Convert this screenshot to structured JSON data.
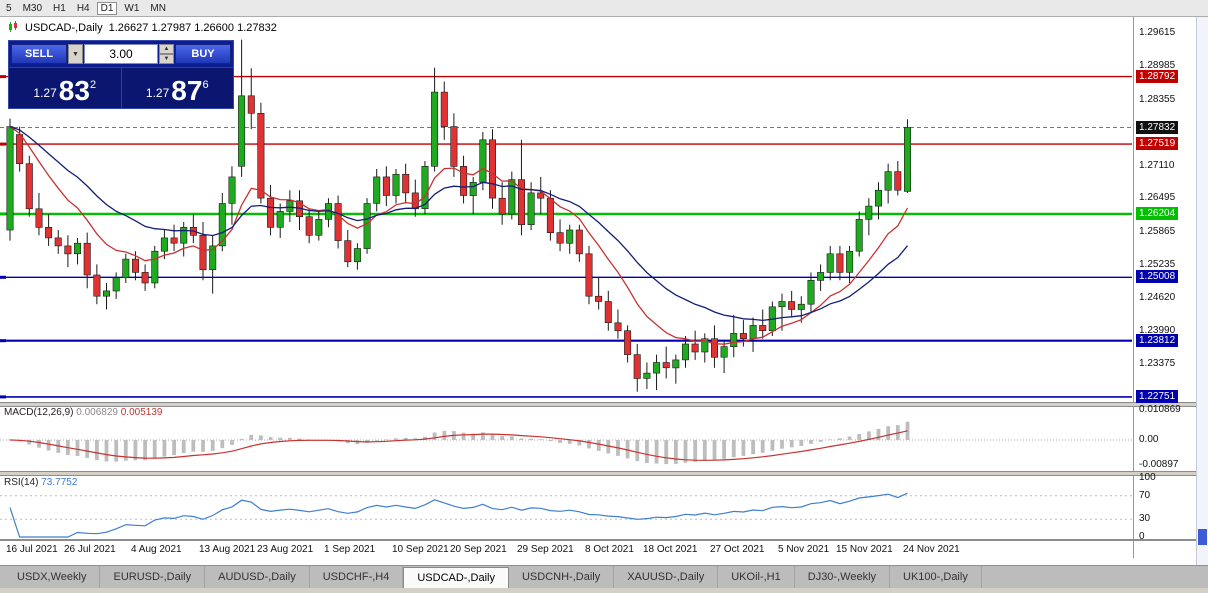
{
  "toolbar": {
    "items": [
      "5",
      "M30",
      "H1",
      "H4",
      "D1",
      "W1",
      "MN"
    ],
    "active": "D1"
  },
  "chart_header": {
    "symbol": "USDCAD-,Daily",
    "ohlc": "1.26627 1.27987 1.26600 1.27832"
  },
  "trade_panel": {
    "sell_label": "SELL",
    "buy_label": "BUY",
    "volume": "3.00",
    "sell_price": {
      "small": "1.27",
      "big": "83",
      "sup": "2"
    },
    "buy_price": {
      "small": "1.27",
      "big": "87",
      "sup": "6"
    }
  },
  "chart_data": {
    "type": "candlestick",
    "title": "USDCAD-,Daily",
    "ohlc_display": {
      "open": "1.26627",
      "high": "1.27987",
      "low": "1.26600",
      "close": "1.27832"
    },
    "visible_price_range": [
      1.22638,
      1.29898
    ],
    "up_color": "#1faa1f",
    "down_color": "#e03232",
    "wick_color": "#1a1a1a",
    "price_axis_ticks": [
      "1.29615",
      "1.28985",
      "1.28355",
      "1.27110",
      "1.26495",
      "1.25865",
      "1.25235",
      "1.24620",
      "1.23990",
      "1.23375"
    ],
    "price_levels": [
      {
        "price": 1.28792,
        "label": "1.28792",
        "color": "#c00000",
        "width": 1.4
      },
      {
        "price": 1.27519,
        "label": "1.27519",
        "color": "#c00000",
        "width": 1.4
      },
      {
        "price": 1.26204,
        "label": "1.26204",
        "color": "#00c000",
        "width": 2.4
      },
      {
        "price": 1.25008,
        "label": "1.25008",
        "color": "#0000b0",
        "width": 1.4
      },
      {
        "price": 1.23812,
        "label": "1.23812",
        "color": "#0000b0",
        "width": 2.2
      },
      {
        "price": 1.22751,
        "label": "1.22751",
        "color": "#0000b0",
        "width": 1.6
      }
    ],
    "current_price": {
      "value": 1.27832,
      "label": "1.27832",
      "badge_bg": "#111111"
    },
    "moving_averages": [
      {
        "period": 10,
        "color": "#c83232",
        "name": "fast-ma-line"
      },
      {
        "period": 21,
        "color": "#141e78",
        "name": "slow-ma-line"
      }
    ],
    "candles": [
      [
        1.259,
        1.28,
        1.257,
        1.2785
      ],
      [
        1.277,
        1.2785,
        1.27,
        1.2715
      ],
      [
        1.2715,
        1.273,
        1.2615,
        1.263
      ],
      [
        1.263,
        1.266,
        1.258,
        1.2595
      ],
      [
        1.2595,
        1.262,
        1.256,
        1.2575
      ],
      [
        1.2575,
        1.259,
        1.2545,
        1.256
      ],
      [
        1.256,
        1.258,
        1.252,
        1.2545
      ],
      [
        1.2545,
        1.2575,
        1.2525,
        1.2565
      ],
      [
        1.2565,
        1.2585,
        1.248,
        1.2505
      ],
      [
        1.2505,
        1.2525,
        1.245,
        1.2465
      ],
      [
        1.2465,
        1.249,
        1.244,
        1.2475
      ],
      [
        1.2475,
        1.251,
        1.246,
        1.25
      ],
      [
        1.25,
        1.2545,
        1.249,
        1.2535
      ],
      [
        1.2535,
        1.255,
        1.2495,
        1.251
      ],
      [
        1.251,
        1.2525,
        1.2475,
        1.249
      ],
      [
        1.249,
        1.256,
        1.248,
        1.255
      ],
      [
        1.255,
        1.259,
        1.2535,
        1.2575
      ],
      [
        1.2575,
        1.26,
        1.255,
        1.2565
      ],
      [
        1.2565,
        1.2605,
        1.254,
        1.2595
      ],
      [
        1.2595,
        1.262,
        1.2565,
        1.258
      ],
      [
        1.258,
        1.2605,
        1.2495,
        1.2515
      ],
      [
        1.2515,
        1.258,
        1.247,
        1.256
      ],
      [
        1.256,
        1.266,
        1.255,
        1.264
      ],
      [
        1.264,
        1.271,
        1.26,
        1.269
      ],
      [
        1.271,
        1.2949,
        1.269,
        1.2843
      ],
      [
        1.2843,
        1.2895,
        1.278,
        1.281
      ],
      [
        1.281,
        1.283,
        1.264,
        1.265
      ],
      [
        1.265,
        1.2675,
        1.258,
        1.2595
      ],
      [
        1.2595,
        1.264,
        1.2575,
        1.2625
      ],
      [
        1.2625,
        1.2665,
        1.2605,
        1.2645
      ],
      [
        1.2645,
        1.2665,
        1.259,
        1.2615
      ],
      [
        1.2615,
        1.263,
        1.2565,
        1.258
      ],
      [
        1.258,
        1.2625,
        1.257,
        1.261
      ],
      [
        1.261,
        1.265,
        1.2595,
        1.264
      ],
      [
        1.264,
        1.2655,
        1.2555,
        1.257
      ],
      [
        1.257,
        1.259,
        1.252,
        1.253
      ],
      [
        1.253,
        1.2565,
        1.2515,
        1.2555
      ],
      [
        1.2555,
        1.265,
        1.2545,
        1.264
      ],
      [
        1.264,
        1.2705,
        1.2625,
        1.269
      ],
      [
        1.269,
        1.271,
        1.2635,
        1.2655
      ],
      [
        1.2655,
        1.2705,
        1.264,
        1.2695
      ],
      [
        1.2695,
        1.2715,
        1.264,
        1.266
      ],
      [
        1.266,
        1.2685,
        1.2615,
        1.263
      ],
      [
        1.263,
        1.272,
        1.262,
        1.271
      ],
      [
        1.271,
        1.2896,
        1.27,
        1.285
      ],
      [
        1.285,
        1.287,
        1.276,
        1.2785
      ],
      [
        1.2785,
        1.281,
        1.269,
        1.271
      ],
      [
        1.271,
        1.273,
        1.264,
        1.2655
      ],
      [
        1.2655,
        1.269,
        1.262,
        1.268
      ],
      [
        1.268,
        1.2775,
        1.2665,
        1.276
      ],
      [
        1.276,
        1.278,
        1.263,
        1.265
      ],
      [
        1.265,
        1.268,
        1.26,
        1.262
      ],
      [
        1.262,
        1.27,
        1.261,
        1.2685
      ],
      [
        1.2685,
        1.276,
        1.258,
        1.26
      ],
      [
        1.26,
        1.268,
        1.259,
        1.266
      ],
      [
        1.266,
        1.269,
        1.262,
        1.265
      ],
      [
        1.265,
        1.2665,
        1.257,
        1.2585
      ],
      [
        1.2585,
        1.261,
        1.255,
        1.2565
      ],
      [
        1.2565,
        1.26,
        1.2545,
        1.259
      ],
      [
        1.259,
        1.26,
        1.253,
        1.2545
      ],
      [
        1.2545,
        1.256,
        1.245,
        1.2465
      ],
      [
        1.2465,
        1.25,
        1.244,
        1.2455
      ],
      [
        1.2455,
        1.2475,
        1.24,
        1.2415
      ],
      [
        1.2415,
        1.244,
        1.2385,
        1.24
      ],
      [
        1.24,
        1.241,
        1.234,
        1.2355
      ],
      [
        1.2355,
        1.2375,
        1.2285,
        1.231
      ],
      [
        1.231,
        1.234,
        1.229,
        1.232
      ],
      [
        1.232,
        1.2355,
        1.2288,
        1.234
      ],
      [
        1.234,
        1.237,
        1.231,
        1.233
      ],
      [
        1.233,
        1.2355,
        1.23,
        1.2345
      ],
      [
        1.2345,
        1.239,
        1.233,
        1.2375
      ],
      [
        1.2375,
        1.24,
        1.2345,
        1.236
      ],
      [
        1.236,
        1.2395,
        1.234,
        1.2385
      ],
      [
        1.2385,
        1.241,
        1.233,
        1.235
      ],
      [
        1.235,
        1.238,
        1.232,
        1.237
      ],
      [
        1.237,
        1.243,
        1.235,
        1.2395
      ],
      [
        1.2395,
        1.242,
        1.237,
        1.2385
      ],
      [
        1.2385,
        1.2425,
        1.236,
        1.241
      ],
      [
        1.241,
        1.244,
        1.2385,
        1.24
      ],
      [
        1.24,
        1.2455,
        1.239,
        1.2445
      ],
      [
        1.2445,
        1.247,
        1.24,
        1.2455
      ],
      [
        1.2455,
        1.2475,
        1.2425,
        1.244
      ],
      [
        1.244,
        1.2465,
        1.2415,
        1.245
      ],
      [
        1.245,
        1.251,
        1.2435,
        1.2495
      ],
      [
        1.2495,
        1.2525,
        1.2475,
        1.251
      ],
      [
        1.251,
        1.256,
        1.2495,
        1.2545
      ],
      [
        1.2545,
        1.256,
        1.2495,
        1.251
      ],
      [
        1.251,
        1.256,
        1.249,
        1.255
      ],
      [
        1.255,
        1.2625,
        1.254,
        1.261
      ],
      [
        1.261,
        1.265,
        1.258,
        1.2635
      ],
      [
        1.2635,
        1.268,
        1.261,
        1.2665
      ],
      [
        1.2665,
        1.2715,
        1.264,
        1.27
      ],
      [
        1.27,
        1.272,
        1.2655,
        1.2665
      ],
      [
        1.26627,
        1.27987,
        1.266,
        1.27832
      ]
    ],
    "date_ticks": [
      {
        "i": 0,
        "label": "16 Jul 2021"
      },
      {
        "i": 6,
        "label": "26 Jul 2021"
      },
      {
        "i": 13,
        "label": "4 Aug 2021"
      },
      {
        "i": 20,
        "label": "13 Aug 2021"
      },
      {
        "i": 26,
        "label": "23 Aug 2021"
      },
      {
        "i": 33,
        "label": "1 Sep 2021"
      },
      {
        "i": 40,
        "label": "10 Sep 2021"
      },
      {
        "i": 46,
        "label": "20 Sep 2021"
      },
      {
        "i": 53,
        "label": "29 Sep 2021"
      },
      {
        "i": 60,
        "label": "8 Oct 2021"
      },
      {
        "i": 66,
        "label": "18 Oct 2021"
      },
      {
        "i": 73,
        "label": "27 Oct 2021"
      },
      {
        "i": 80,
        "label": "5 Nov 2021"
      },
      {
        "i": 86,
        "label": "15 Nov 2021"
      },
      {
        "i": 93,
        "label": "24 Nov 2021"
      }
    ],
    "indicators": {
      "macd": {
        "label": "MACD(12,26,9)",
        "fast": 12,
        "slow": 26,
        "signal": 9,
        "value_main": "0.006829",
        "value_signal": "0.005139",
        "axis_ticks": [
          "0.010869",
          "0.00",
          "-0.00897"
        ],
        "hist_color": "#bdbdbd",
        "signal_color": "#c83232"
      },
      "rsi": {
        "label": "RSI(14)",
        "period": 14,
        "value": "73.7752",
        "axis_ticks": [
          "100",
          "70",
          "30",
          "0"
        ],
        "levels": [
          70,
          30
        ],
        "color": "#3f7fce"
      }
    }
  },
  "tabs": {
    "items": [
      "USDX,Weekly",
      "EURUSD-,Daily",
      "AUDUSD-,Daily",
      "USDCHF-,H4",
      "USDCAD-,Daily",
      "USDCNH-,Daily",
      "XAUUSD-,Daily",
      "UKOil-,H1",
      "DJ30-,Weekly",
      "UK100-,Daily"
    ],
    "active": "USDCAD-,Daily"
  }
}
